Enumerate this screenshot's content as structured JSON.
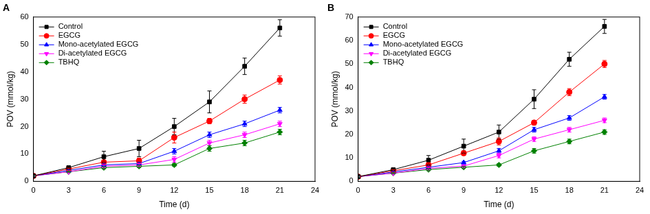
{
  "chart_data": [
    {
      "type": "line",
      "title": "A",
      "x_label": "Time (d)",
      "y_label": "POV (mmol/kg)",
      "x": [
        0,
        3,
        6,
        9,
        12,
        15,
        18,
        21
      ],
      "xlim": [
        0,
        24
      ],
      "xticks": [
        0,
        3,
        6,
        9,
        12,
        15,
        18,
        21,
        24
      ],
      "ylim": [
        0,
        60
      ],
      "yticks": [
        0,
        10,
        20,
        30,
        40,
        50,
        60
      ],
      "grid": false,
      "legend": "upper left",
      "series": [
        {
          "name": "Control",
          "color": "#000000",
          "marker": "square",
          "line_style": "solid",
          "values": [
            2,
            5,
            9,
            12,
            20,
            29,
            42,
            56
          ],
          "errors": [
            0.3,
            0.5,
            2,
            3,
            3,
            4,
            3,
            3
          ]
        },
        {
          "name": "EGCG",
          "color": "#ff0000",
          "marker": "circle",
          "line_style": "solid",
          "values": [
            2,
            4.5,
            7,
            7.5,
            16,
            22,
            30,
            37
          ],
          "errors": [
            0.2,
            0.3,
            0.5,
            1,
            2,
            1,
            1.5,
            1.5
          ]
        },
        {
          "name": "Mono-acetylated EGCG",
          "color": "#0000ff",
          "marker": "triangle",
          "line_style": "solid",
          "values": [
            2,
            4,
            6,
            6.5,
            11,
            17,
            21,
            26
          ],
          "errors": [
            0.2,
            0.3,
            0.5,
            0.5,
            1,
            1,
            1,
            1
          ]
        },
        {
          "name": "Di-acetylated EGCG",
          "color": "#ff00ff",
          "marker": "triangle-down",
          "line_style": "solid",
          "values": [
            2,
            3.5,
            5.5,
            6,
            8,
            14,
            17,
            21
          ],
          "errors": [
            0.2,
            0.3,
            0.5,
            0.5,
            1,
            1,
            1,
            1
          ]
        },
        {
          "name": "TBHQ",
          "color": "#008000",
          "marker": "diamond",
          "line_style": "solid",
          "values": [
            2,
            3.5,
            5,
            5.5,
            6,
            12,
            14,
            18
          ],
          "errors": [
            0.2,
            0.2,
            0.4,
            0.4,
            0.5,
            1,
            1,
            1
          ]
        }
      ]
    },
    {
      "type": "line",
      "title": "B",
      "x_label": "Time (d)",
      "y_label": "POV (mmol/kg)",
      "x": [
        0,
        3,
        6,
        9,
        12,
        15,
        18,
        21
      ],
      "xlim": [
        0,
        24
      ],
      "xticks": [
        0,
        3,
        6,
        9,
        12,
        15,
        18,
        21,
        24
      ],
      "ylim": [
        0,
        70
      ],
      "yticks": [
        0,
        10,
        20,
        30,
        40,
        50,
        60,
        70
      ],
      "grid": false,
      "legend": "upper left",
      "series": [
        {
          "name": "Control",
          "color": "#000000",
          "marker": "square",
          "line_style": "solid",
          "values": [
            2,
            5,
            9,
            15,
            21,
            35,
            52,
            66
          ],
          "errors": [
            0.3,
            0.5,
            2,
            3,
            3,
            4,
            3,
            3
          ]
        },
        {
          "name": "EGCG",
          "color": "#ff0000",
          "marker": "circle",
          "line_style": "solid",
          "values": [
            2,
            4.5,
            7,
            12,
            17,
            25,
            38,
            50
          ],
          "errors": [
            0.2,
            0.4,
            1,
            1,
            1.5,
            1,
            1.5,
            1.5
          ]
        },
        {
          "name": "Mono-acetylated EGCG",
          "color": "#0000ff",
          "marker": "triangle",
          "line_style": "solid",
          "values": [
            2,
            4,
            6,
            8,
            13,
            22,
            27,
            36
          ],
          "errors": [
            0.2,
            0.3,
            0.5,
            0.5,
            1,
            1,
            1,
            1
          ]
        },
        {
          "name": "Di-acetylated EGCG",
          "color": "#ff00ff",
          "marker": "triangle-down",
          "line_style": "solid",
          "values": [
            2,
            3.5,
            5.5,
            6.5,
            11,
            18,
            22,
            26
          ],
          "errors": [
            0.2,
            0.3,
            0.5,
            0.5,
            1,
            1,
            1,
            1
          ]
        },
        {
          "name": "TBHQ",
          "color": "#008000",
          "marker": "diamond",
          "line_style": "solid",
          "values": [
            2,
            3.5,
            5,
            6,
            7,
            13,
            17,
            21
          ],
          "errors": [
            0.2,
            0.2,
            0.4,
            0.4,
            0.5,
            1,
            1,
            1
          ]
        }
      ]
    }
  ]
}
